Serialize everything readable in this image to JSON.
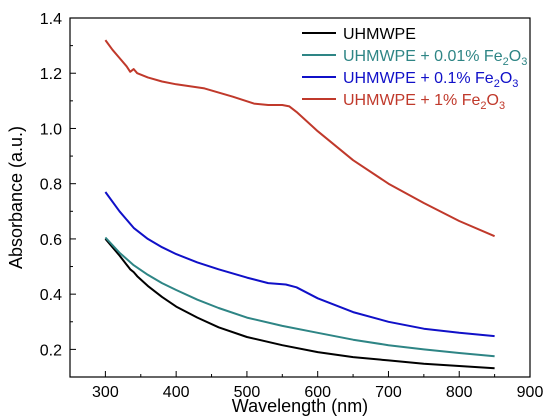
{
  "chart_data": {
    "type": "line",
    "xlabel": "Wavelength (nm)",
    "ylabel": "Absorbance (a.u.)",
    "xlim": [
      250,
      900
    ],
    "ylim": [
      0.1,
      1.4
    ],
    "xticks": [
      300,
      400,
      500,
      600,
      700,
      800,
      900
    ],
    "yticks": [
      0.2,
      0.4,
      0.6,
      0.8,
      1.0,
      1.2,
      1.4
    ],
    "grid": false,
    "legend_position": "top-right",
    "series": [
      {
        "name": "UHMWPE",
        "color": "#000000",
        "x": [
          300,
          320,
          335,
          340,
          345,
          360,
          380,
          400,
          430,
          460,
          500,
          550,
          600,
          650,
          700,
          750,
          800,
          850
        ],
        "y": [
          0.6,
          0.54,
          0.49,
          0.48,
          0.465,
          0.43,
          0.39,
          0.355,
          0.315,
          0.28,
          0.245,
          0.215,
          0.19,
          0.172,
          0.16,
          0.148,
          0.14,
          0.132
        ]
      },
      {
        "name": "UHMWPE + 0.01% Fe",
        "name_sub1": "2",
        "name_mid": "O",
        "name_sub2": "3",
        "color": "#2e8585",
        "x": [
          300,
          320,
          340,
          360,
          380,
          400,
          430,
          460,
          500,
          550,
          600,
          650,
          700,
          750,
          800,
          850
        ],
        "y": [
          0.605,
          0.55,
          0.505,
          0.47,
          0.44,
          0.415,
          0.38,
          0.35,
          0.315,
          0.285,
          0.26,
          0.235,
          0.215,
          0.2,
          0.187,
          0.175
        ]
      },
      {
        "name": "UHMWPE + 0.1% Fe",
        "name_sub1": "2",
        "name_mid": "O",
        "name_sub2": "3",
        "color": "#1010c8",
        "x": [
          300,
          320,
          340,
          360,
          380,
          400,
          430,
          460,
          500,
          530,
          555,
          570,
          600,
          650,
          700,
          750,
          800,
          850
        ],
        "y": [
          0.77,
          0.7,
          0.64,
          0.6,
          0.57,
          0.545,
          0.515,
          0.49,
          0.46,
          0.44,
          0.435,
          0.425,
          0.385,
          0.335,
          0.3,
          0.275,
          0.26,
          0.248
        ]
      },
      {
        "name": "UHMWPE + 1% Fe",
        "name_sub1": "2",
        "name_mid": "O",
        "name_sub2": "3",
        "color": "#c0392b",
        "x": [
          300,
          310,
          320,
          330,
          335,
          340,
          345,
          360,
          380,
          400,
          440,
          480,
          510,
          530,
          550,
          560,
          570,
          600,
          650,
          700,
          750,
          800,
          850
        ],
        "y": [
          1.32,
          1.285,
          1.255,
          1.225,
          1.205,
          1.215,
          1.2,
          1.185,
          1.17,
          1.16,
          1.145,
          1.115,
          1.09,
          1.085,
          1.085,
          1.08,
          1.06,
          0.99,
          0.885,
          0.8,
          0.73,
          0.665,
          0.61
        ]
      }
    ]
  }
}
